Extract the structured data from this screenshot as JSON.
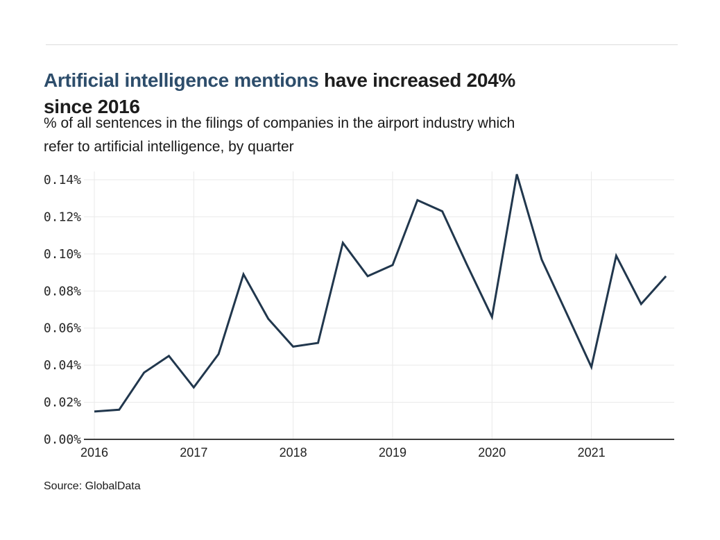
{
  "page": {
    "background_color": "#ffffff",
    "divider_color": "#dcdcdc"
  },
  "header": {
    "title_highlight": "Artificial intelligence mentions",
    "title_rest_line1": "have increased 204%",
    "title_line2": "since 2016",
    "title_highlight_color": "#2d4d6b",
    "title_text_color": "#1d1d1d",
    "subtitle_line1": "% of all sentences in the filings of companies in the airport industry which",
    "subtitle_line2": "refer to artificial intelligence, by quarter"
  },
  "footer": {
    "source": "Source: GlobalData"
  },
  "chart_data": {
    "type": "line",
    "title": "Artificial intelligence mentions have increased 204% since 2016",
    "subtitle": "% of all sentences in the filings of companies in the airport industry which refer to artificial intelligence, by quarter",
    "source": "Source: GlobalData",
    "categories": [
      "2016 Q1",
      "2016 Q2",
      "2016 Q3",
      "2016 Q4",
      "2017 Q1",
      "2017 Q2",
      "2017 Q3",
      "2017 Q4",
      "2018 Q1",
      "2018 Q2",
      "2018 Q3",
      "2018 Q4",
      "2019 Q1",
      "2019 Q2",
      "2019 Q3",
      "2019 Q4",
      "2020 Q1",
      "2020 Q2",
      "2020 Q3",
      "2020 Q4",
      "2021 Q1",
      "2021 Q2",
      "2021 Q3",
      "2021 Q4"
    ],
    "values": [
      0.015,
      0.016,
      0.036,
      0.045,
      0.028,
      0.046,
      0.089,
      0.065,
      0.05,
      0.052,
      0.106,
      0.088,
      0.094,
      0.129,
      0.123,
      0.094,
      0.066,
      0.143,
      0.097,
      0.068,
      0.039,
      0.099,
      0.073,
      0.088
    ],
    "unit": "%",
    "xlabel": "",
    "ylabel": "",
    "x_tick_labels": [
      "2016",
      "2017",
      "2018",
      "2019",
      "2020",
      "2021"
    ],
    "y_tick_labels": [
      "0.00%",
      "0.02%",
      "0.04%",
      "0.06%",
      "0.08%",
      "0.10%",
      "0.12%",
      "0.14%"
    ],
    "ylim": [
      0,
      0.14
    ],
    "y_tick_step": 0.02,
    "grid": true,
    "legend": false,
    "line_color": "#21374d",
    "gridline_color": "#e9e9e9",
    "axis_color": "#3c3c3c"
  }
}
